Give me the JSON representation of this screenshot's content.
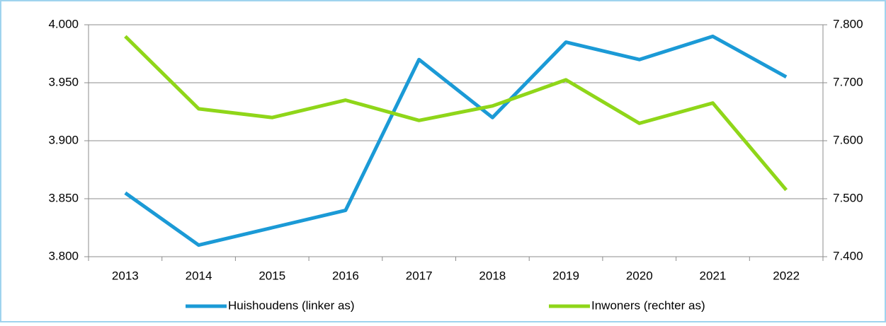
{
  "chart_data": {
    "type": "line",
    "categories": [
      "2013",
      "2014",
      "2015",
      "2016",
      "2017",
      "2018",
      "2019",
      "2020",
      "2021",
      "2022"
    ],
    "series": [
      {
        "name": "Huishoudens (linker as)",
        "color": "#1b9ad6",
        "values": [
          3855,
          3810,
          3825,
          3840,
          3970,
          3920,
          3985,
          3970,
          3990,
          3955
        ]
      },
      {
        "name": "Inwoners (rechter as)",
        "color": "#8fd619",
        "axis": "y2",
        "values": [
          7780,
          7655,
          7640,
          7670,
          7635,
          7660,
          7705,
          7630,
          7665,
          7515
        ]
      }
    ],
    "ylim": [
      3800,
      4000
    ],
    "yticks": [
      {
        "value": 3800,
        "label": "3.800"
      },
      {
        "value": 3850,
        "label": "3.850"
      },
      {
        "value": 3900,
        "label": "3.900"
      },
      {
        "value": 3950,
        "label": "3.950"
      },
      {
        "value": 4000,
        "label": "4.000"
      }
    ],
    "y2lim": [
      7400,
      7800
    ],
    "y2ticks": [
      {
        "value": 7400,
        "label": "7.400"
      },
      {
        "value": 7500,
        "label": "7.500"
      },
      {
        "value": 7600,
        "label": "7.600"
      },
      {
        "value": 7700,
        "label": "7.700"
      },
      {
        "value": 7800,
        "label": "7.800"
      }
    ],
    "grid": true
  }
}
